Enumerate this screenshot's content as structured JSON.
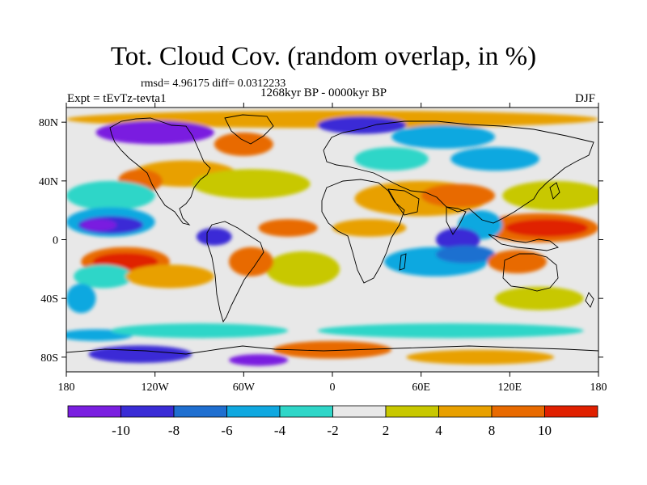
{
  "title": "Tot. Cloud Cov. (random overlap, in %)",
  "stats": "rmsd= 4.96175 diff= 0.0312233",
  "period": "1268kyr BP - 0000kyr BP",
  "experiment": "Expt = tEvTz-tevta1",
  "season": "DJF",
  "map": {
    "projection": "cylindrical equidistant",
    "lon_range": [
      -180,
      180
    ],
    "lat_range": [
      -90,
      90
    ],
    "lat_ticks": [
      {
        "value": 80,
        "label": "80N"
      },
      {
        "value": 40,
        "label": "40N"
      },
      {
        "value": 0,
        "label": "0"
      },
      {
        "value": -40,
        "label": "40S"
      },
      {
        "value": -80,
        "label": "80S"
      }
    ],
    "lon_ticks": [
      {
        "value": -180,
        "label": "180"
      },
      {
        "value": -120,
        "label": "120W"
      },
      {
        "value": -60,
        "label": "60W"
      },
      {
        "value": 0,
        "label": "0"
      },
      {
        "value": 60,
        "label": "60E"
      },
      {
        "value": 120,
        "label": "120E"
      },
      {
        "value": 180,
        "label": "180"
      }
    ],
    "colors": [
      "#7a1fe0",
      "#3a2cd6",
      "#1f6fd0",
      "#10a8e0",
      "#2fd6c8",
      "#e8e8e8",
      "#c8c800",
      "#e8a000",
      "#e86a00",
      "#e02000"
    ],
    "anomaly_regions": [
      {
        "lon": 0,
        "lat": 82,
        "rlon": 180,
        "rlat": 6,
        "level": 7
      },
      {
        "lon": -120,
        "lat": 73,
        "rlon": 40,
        "rlat": 8,
        "level": 0
      },
      {
        "lon": 20,
        "lat": 78,
        "rlon": 30,
        "rlat": 6,
        "level": 1
      },
      {
        "lon": -60,
        "lat": 65,
        "rlon": 20,
        "rlat": 8,
        "level": 8
      },
      {
        "lon": 75,
        "lat": 70,
        "rlon": 35,
        "rlat": 8,
        "level": 3
      },
      {
        "lon": 110,
        "lat": 55,
        "rlon": 30,
        "rlat": 8,
        "level": 3
      },
      {
        "lon": 40,
        "lat": 55,
        "rlon": 25,
        "rlat": 8,
        "level": 4
      },
      {
        "lon": -100,
        "lat": 45,
        "rlon": 35,
        "rlat": 9,
        "level": 7
      },
      {
        "lon": -130,
        "lat": 40,
        "rlon": 15,
        "rlat": 8,
        "level": 8
      },
      {
        "lon": -55,
        "lat": 38,
        "rlon": 40,
        "rlat": 10,
        "level": 6
      },
      {
        "lon": 60,
        "lat": 28,
        "rlon": 45,
        "rlat": 12,
        "level": 7
      },
      {
        "lon": 85,
        "lat": 30,
        "rlon": 25,
        "rlat": 8,
        "level": 8
      },
      {
        "lon": 150,
        "lat": 30,
        "rlon": 35,
        "rlat": 10,
        "level": 6
      },
      {
        "lon": -150,
        "lat": 30,
        "rlon": 30,
        "rlat": 10,
        "level": 4
      },
      {
        "lon": -150,
        "lat": 12,
        "rlon": 30,
        "rlat": 10,
        "level": 3
      },
      {
        "lon": -150,
        "lat": 10,
        "rlon": 22,
        "rlat": 6,
        "level": 1
      },
      {
        "lon": -158,
        "lat": 10,
        "rlon": 12,
        "rlat": 4,
        "level": 0
      },
      {
        "lon": 140,
        "lat": 8,
        "rlon": 40,
        "rlat": 10,
        "level": 8
      },
      {
        "lon": 145,
        "lat": 8,
        "rlon": 28,
        "rlat": 6,
        "level": 9
      },
      {
        "lon": 100,
        "lat": 10,
        "rlon": 15,
        "rlat": 10,
        "level": 3
      },
      {
        "lon": 85,
        "lat": 0,
        "rlon": 15,
        "rlat": 8,
        "level": 1
      },
      {
        "lon": -30,
        "lat": 8,
        "rlon": 20,
        "rlat": 6,
        "level": 8
      },
      {
        "lon": 25,
        "lat": 8,
        "rlon": 25,
        "rlat": 6,
        "level": 7
      },
      {
        "lon": -80,
        "lat": 2,
        "rlon": 12,
        "rlat": 6,
        "level": 1
      },
      {
        "lon": -140,
        "lat": -15,
        "rlon": 30,
        "rlat": 10,
        "level": 8
      },
      {
        "lon": -140,
        "lat": -15,
        "rlon": 22,
        "rlat": 6,
        "level": 9
      },
      {
        "lon": -155,
        "lat": -25,
        "rlon": 20,
        "rlat": 8,
        "level": 4
      },
      {
        "lon": -110,
        "lat": -25,
        "rlon": 30,
        "rlat": 8,
        "level": 7
      },
      {
        "lon": -20,
        "lat": -20,
        "rlon": 25,
        "rlat": 12,
        "level": 6
      },
      {
        "lon": -55,
        "lat": -15,
        "rlon": 15,
        "rlat": 10,
        "level": 8
      },
      {
        "lon": 70,
        "lat": -15,
        "rlon": 35,
        "rlat": 10,
        "level": 3
      },
      {
        "lon": 90,
        "lat": -10,
        "rlon": 20,
        "rlat": 6,
        "level": 2
      },
      {
        "lon": 125,
        "lat": -15,
        "rlon": 20,
        "rlat": 8,
        "level": 8
      },
      {
        "lon": 140,
        "lat": -40,
        "rlon": 30,
        "rlat": 8,
        "level": 6
      },
      {
        "lon": -170,
        "lat": -40,
        "rlon": 10,
        "rlat": 10,
        "level": 3
      },
      {
        "lon": -160,
        "lat": -65,
        "rlon": 25,
        "rlat": 4,
        "level": 3
      },
      {
        "lon": -90,
        "lat": -62,
        "rlon": 60,
        "rlat": 5,
        "level": 4
      },
      {
        "lon": 80,
        "lat": -62,
        "rlon": 90,
        "rlat": 5,
        "level": 4
      },
      {
        "lon": -130,
        "lat": -78,
        "rlon": 35,
        "rlat": 6,
        "level": 1
      },
      {
        "lon": 0,
        "lat": -75,
        "rlon": 40,
        "rlat": 6,
        "level": 8
      },
      {
        "lon": 100,
        "lat": -80,
        "rlon": 50,
        "rlat": 5,
        "level": 7
      },
      {
        "lon": -50,
        "lat": -82,
        "rlon": 20,
        "rlat": 4,
        "level": 0
      }
    ]
  },
  "colorbar": {
    "labels": [
      "-10",
      "-8",
      "-6",
      "-4",
      "-2",
      "2",
      "4",
      "8",
      "10"
    ]
  }
}
